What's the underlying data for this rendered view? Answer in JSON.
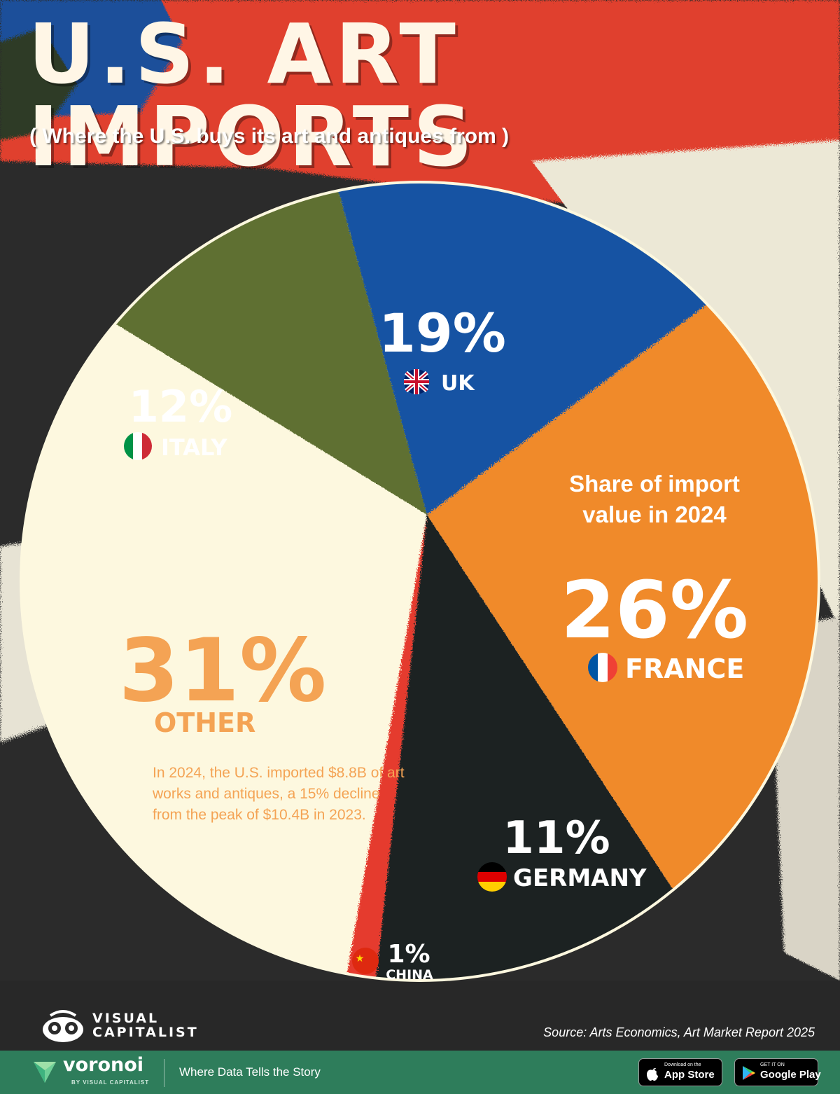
{
  "title": "U.S. ART IMPORTS",
  "subtitle": "( Where the U.S. buys its art and antiques from )",
  "chart_data": {
    "type": "pie",
    "title": "Share of import value in 2024",
    "slices": [
      {
        "label": "UK",
        "value": 19,
        "value_label": "19%",
        "color": "#1553a3"
      },
      {
        "label": "FRANCE",
        "value": 26,
        "value_label": "26%",
        "color": "#f08a2a"
      },
      {
        "label": "GERMANY",
        "value": 11,
        "value_label": "11%",
        "color": "#1f2222"
      },
      {
        "label": "CHINA",
        "value": 1,
        "value_label": "1%",
        "color": "#e53a2e"
      },
      {
        "label": "OTHER",
        "value": 31,
        "value_label": "31%",
        "color": "#fdf8df"
      },
      {
        "label": "ITALY",
        "value": 12,
        "value_label": "12%",
        "color": "#5f7030"
      }
    ]
  },
  "chart_caption": {
    "line1": "Share of import",
    "line2": "value in 2024"
  },
  "annotation": [
    "In 2024, the U.S. imported $8.8B of art",
    "works and antiques, a 15% decline",
    "from the peak of $10.4B in 2023."
  ],
  "source": "Source: Arts Economics, Art Market Report 2025",
  "brand": {
    "vc_line1": "VISUAL",
    "vc_line2": "CAPITALIST",
    "voronoi": "voronoi",
    "voronoi_by": "BY VISUAL CAPITALIST",
    "tagline": "Where Data Tells the Story",
    "appstore_small": "Download on the",
    "appstore_big": "App Store",
    "googleplay_small": "GET IT ON",
    "googleplay_big": "Google Play"
  },
  "colors": {
    "other_label": "#f4a354",
    "footer": "#2e7d5b"
  }
}
